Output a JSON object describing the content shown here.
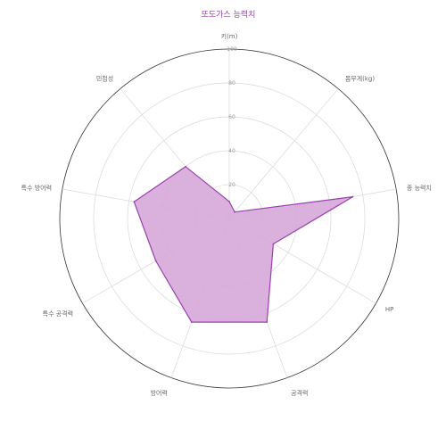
{
  "chart_data": {
    "type": "radar",
    "title": "또도가스 능력치",
    "axes": [
      "키(m)",
      "몸무게(kg)",
      "종 능력치",
      "HP",
      "공격력",
      "방어력",
      "특수 공격력",
      "특수 방어력",
      "민첩성"
    ],
    "series": [
      {
        "values": [
          10,
          5,
          74,
          30,
          65,
          65,
          50,
          57,
          40
        ],
        "color": "#9b3fae",
        "fill": "#d6a9d9"
      }
    ],
    "radial_ticks": [
      20,
      40,
      60,
      80,
      100
    ],
    "rmax": 100,
    "grid": true
  }
}
